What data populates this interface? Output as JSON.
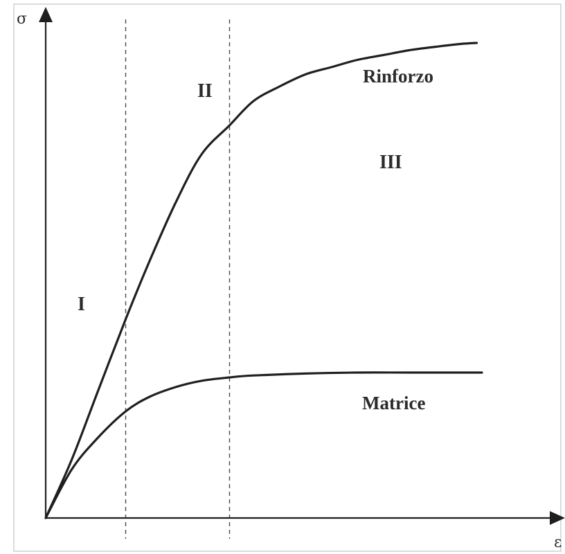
{
  "chart_data": {
    "type": "line",
    "xlabel": "ε",
    "ylabel": "σ",
    "xlim": [
      0,
      1
    ],
    "ylim": [
      0,
      1
    ],
    "grid": false,
    "series": [
      {
        "name": "Rinforzo",
        "x": [
          0.0,
          0.05,
          0.1,
          0.154,
          0.2,
          0.25,
          0.3,
          0.354,
          0.4,
          0.45,
          0.5,
          0.55,
          0.6,
          0.65,
          0.7,
          0.75,
          0.8,
          0.83
        ],
        "y": [
          0.0,
          0.12,
          0.26,
          0.41,
          0.53,
          0.65,
          0.75,
          0.81,
          0.86,
          0.89,
          0.915,
          0.93,
          0.945,
          0.955,
          0.965,
          0.972,
          0.978,
          0.98
        ]
      },
      {
        "name": "Matrice",
        "x": [
          0.0,
          0.05,
          0.1,
          0.154,
          0.2,
          0.25,
          0.3,
          0.354,
          0.4,
          0.5,
          0.6,
          0.7,
          0.8,
          0.84
        ],
        "y": [
          0.0,
          0.1,
          0.165,
          0.22,
          0.25,
          0.27,
          0.283,
          0.29,
          0.294,
          0.298,
          0.3,
          0.3,
          0.3,
          0.3
        ]
      }
    ],
    "dividers_x": [
      0.154,
      0.354
    ],
    "zones": [
      "I",
      "II",
      "III"
    ]
  }
}
